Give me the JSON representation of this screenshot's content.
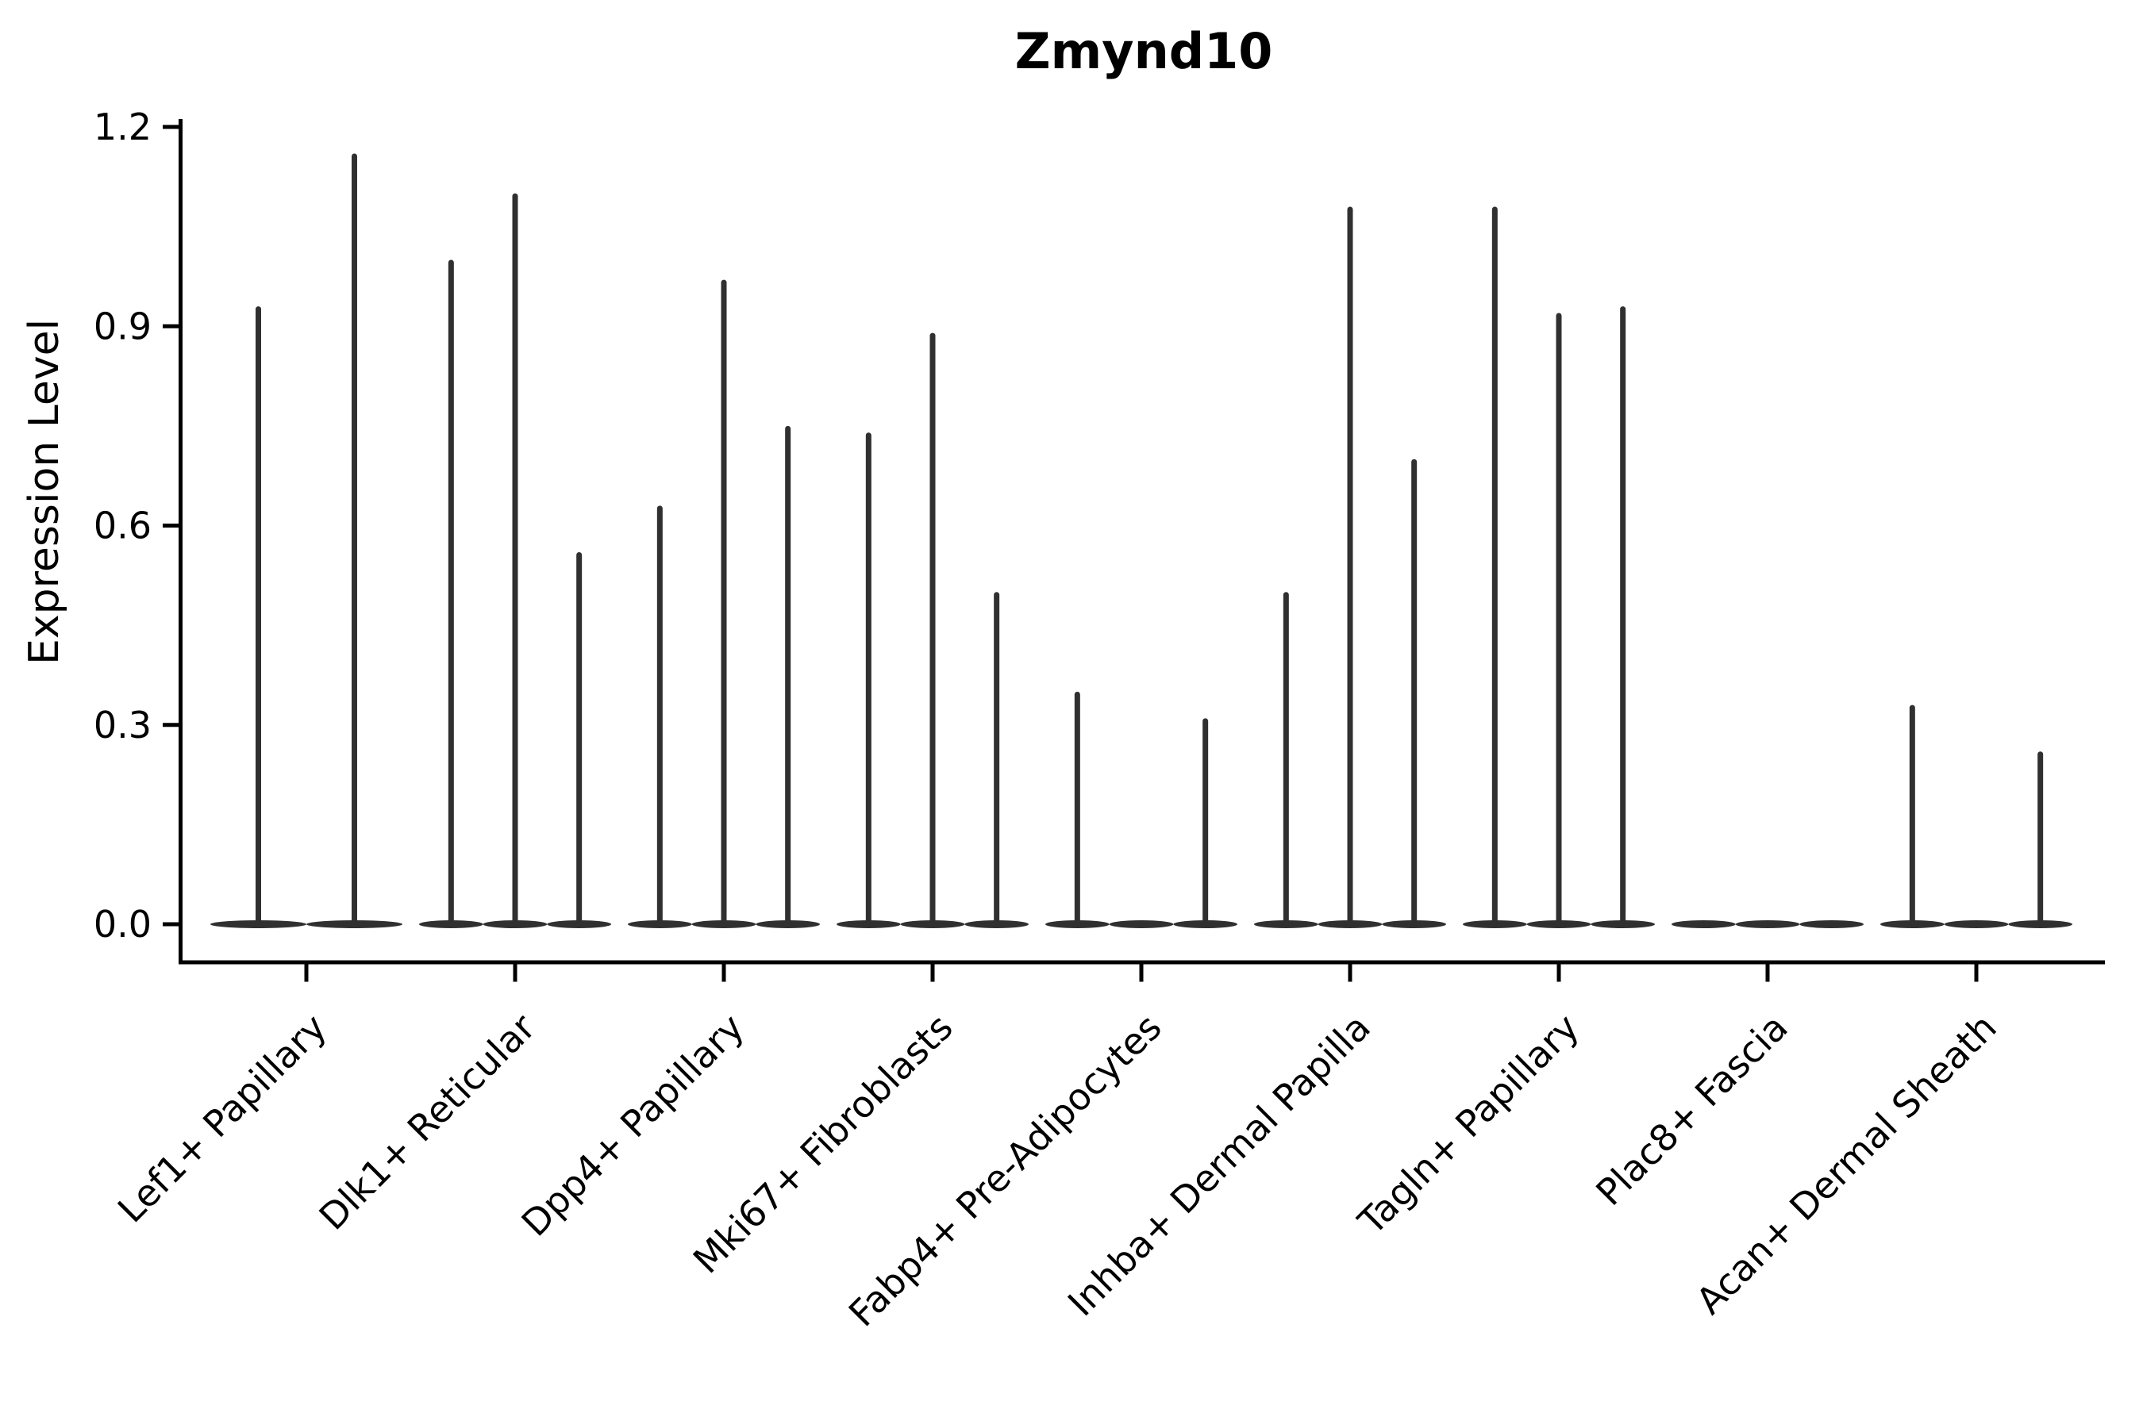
{
  "figure": {
    "background": "#ffffff"
  },
  "chart_data": {
    "type": "violin",
    "title": "Zmynd10",
    "xlabel": "",
    "ylabel": "Expression Level",
    "ylim": [
      0,
      1.2
    ],
    "yticks": [
      "0.0",
      "0.3",
      "0.6",
      "0.9",
      "1.2"
    ],
    "grid": false,
    "legend": null,
    "categories": [
      "Lef1+ Papillary",
      "Dlk1+ Reticular",
      "Dpp4+ Papillary",
      "Mki67+ Fibroblasts",
      "Fabp4+ Pre-Adipocytes",
      "Inhba+ Dermal Papilla",
      "Tagln+ Papillary",
      "Plac8+ Fascia",
      "Acan+ Dermal Sheath"
    ],
    "series_note": "Each category holds thin violins (mostly-zero expression); values below are the max expression level reached by each violin spike, left to right. 0 = flat violin at baseline.",
    "violin_maxima": [
      [
        0.93,
        1.16
      ],
      [
        1.0,
        1.1,
        0.56
      ],
      [
        0.63,
        0.97,
        0.75
      ],
      [
        0.74,
        0.89,
        0.5
      ],
      [
        0.35,
        0.0,
        0.31
      ],
      [
        0.5,
        1.08,
        0.7
      ],
      [
        1.08,
        0.92,
        0.93
      ],
      [
        0.0,
        0.0,
        0.0
      ],
      [
        0.33,
        0.0,
        0.26
      ]
    ],
    "violin_color": "#303030",
    "axis_color": "#000000",
    "text_color": "#000000"
  }
}
